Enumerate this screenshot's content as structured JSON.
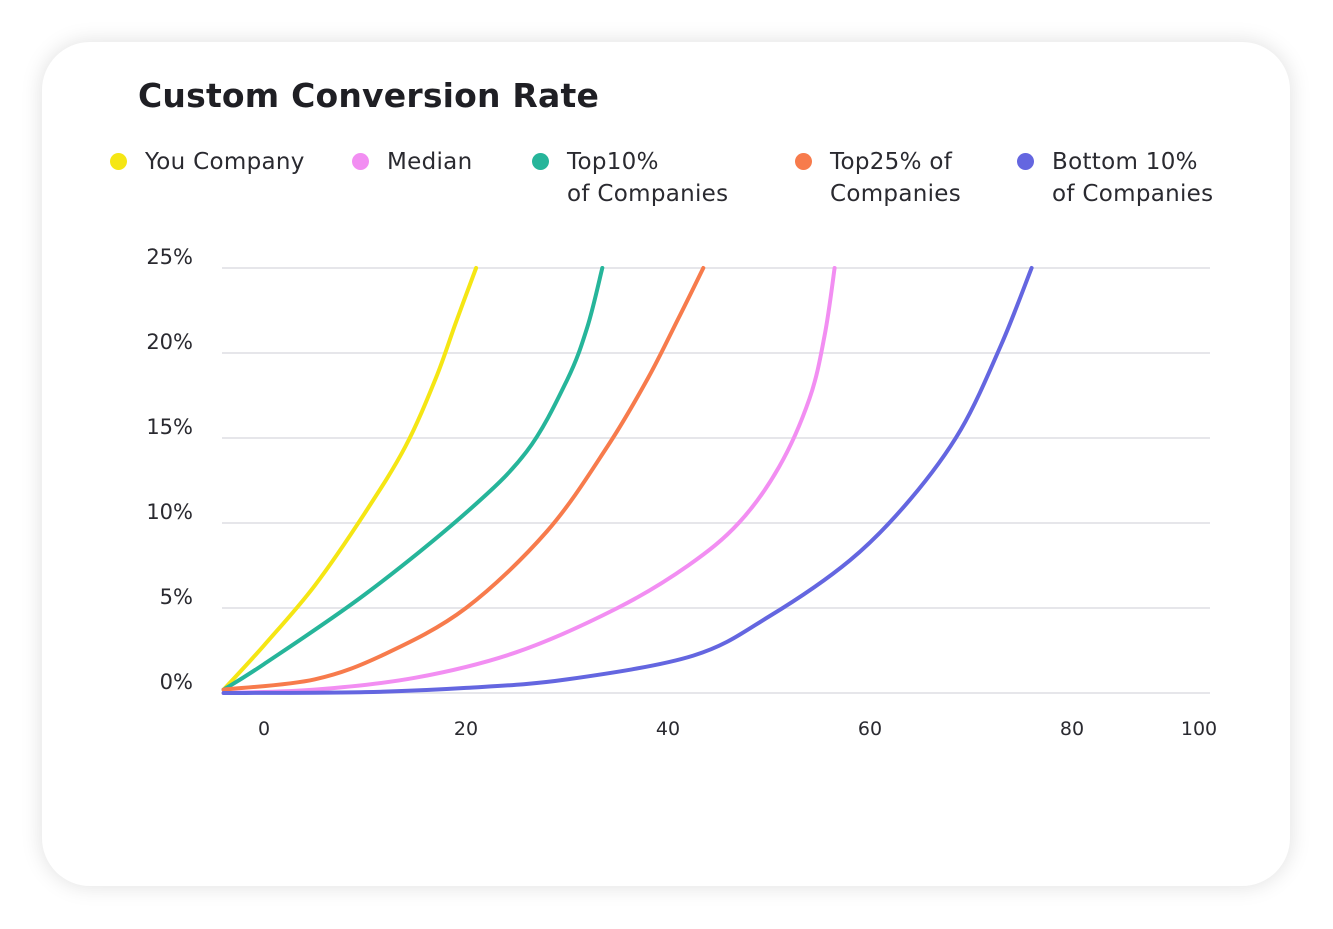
{
  "colors": {
    "you_company": "#f5e614",
    "median": "#f28ef2",
    "top10": "#26b59a",
    "top25": "#f77b4c",
    "bottom10": "#6466e0",
    "grid": "#e6e6ea",
    "text": "#2a2a30"
  },
  "chart_data": {
    "type": "line",
    "title": "Custom Conversion Rate",
    "xlabel": "",
    "ylabel": "",
    "x_ticks": [
      "0",
      "20",
      "40",
      "60",
      "80",
      "100"
    ],
    "y_ticks": [
      "0%",
      "5%",
      "10%",
      "15%",
      "20%",
      "25%"
    ],
    "xlim": [
      0,
      100
    ],
    "ylim": [
      0,
      25
    ],
    "grid": "horizontal",
    "legend_position": "top",
    "series": [
      {
        "key": "you_company",
        "name": "You Company",
        "color": "#f5e614",
        "points": [
          [
            -4,
            0.2
          ],
          [
            0,
            2.8
          ],
          [
            5,
            6.3
          ],
          [
            10,
            10.6
          ],
          [
            14,
            14.5
          ],
          [
            17,
            18.5
          ],
          [
            19,
            21.8
          ],
          [
            21,
            25
          ]
        ]
      },
      {
        "key": "median",
        "name": "Median",
        "color": "#f28ef2",
        "points": [
          [
            -4,
            0
          ],
          [
            5,
            0.2
          ],
          [
            15,
            0.9
          ],
          [
            25,
            2.4
          ],
          [
            35,
            5.0
          ],
          [
            42,
            7.5
          ],
          [
            47,
            10.0
          ],
          [
            51,
            13.3
          ],
          [
            54,
            17.3
          ],
          [
            55.5,
            21
          ],
          [
            56.5,
            25
          ]
        ]
      },
      {
        "key": "top10",
        "name": "Top10%\nof Companies",
        "color": "#26b59a",
        "points": [
          [
            -4,
            0.2
          ],
          [
            0,
            1.7
          ],
          [
            10,
            5.8
          ],
          [
            20,
            10.6
          ],
          [
            26,
            14.2
          ],
          [
            30,
            18.4
          ],
          [
            32,
            21.5
          ],
          [
            33.5,
            25
          ]
        ]
      },
      {
        "key": "top25",
        "name": "Top25% of\nCompanies",
        "color": "#f77b4c",
        "points": [
          [
            -4,
            0.2
          ],
          [
            5,
            0.8
          ],
          [
            12,
            2.3
          ],
          [
            20,
            5.0
          ],
          [
            28,
            9.5
          ],
          [
            34,
            14.5
          ],
          [
            38,
            18.5
          ],
          [
            41,
            22.0
          ],
          [
            43.5,
            25
          ]
        ]
      },
      {
        "key": "bottom10",
        "name": "Bottom 10%\nof Companies",
        "color": "#6466e0",
        "points": [
          [
            -4,
            0
          ],
          [
            10,
            0.05
          ],
          [
            20,
            0.3
          ],
          [
            30,
            0.8
          ],
          [
            42.5,
            2.2
          ],
          [
            50,
            4.5
          ],
          [
            58,
            7.8
          ],
          [
            64,
            11.4
          ],
          [
            69,
            15.5
          ],
          [
            73,
            20.5
          ],
          [
            76,
            25
          ]
        ]
      }
    ]
  }
}
